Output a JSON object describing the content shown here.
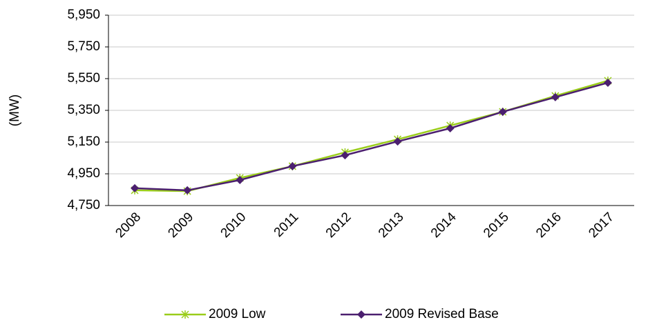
{
  "chart_data": {
    "type": "line",
    "y_label": "(MW)",
    "categories": [
      "2008",
      "2009",
      "2010",
      "2011",
      "2012",
      "2013",
      "2014",
      "2015",
      "2016",
      "2017"
    ],
    "series": [
      {
        "name": "2009 Low",
        "color": "#9acd1a",
        "marker": "star",
        "values": [
          4846,
          4841,
          4924,
          4998,
          5085,
          5167,
          5254,
          5341,
          5441,
          5537
        ]
      },
      {
        "name": "2009 Revised Base",
        "color": "#4b1f6f",
        "marker": "diamond",
        "values": [
          4859,
          4846,
          4911,
          4998,
          5067,
          5154,
          5237,
          5341,
          5433,
          5524
        ]
      }
    ],
    "ylim": [
      4750,
      5950
    ],
    "yticks": [
      {
        "value": 4750,
        "label": "4,750"
      },
      {
        "value": 4950,
        "label": "4,950"
      },
      {
        "value": 5150,
        "label": "5,150"
      },
      {
        "value": 5350,
        "label": "5,350"
      },
      {
        "value": 5550,
        "label": "5,550"
      },
      {
        "value": 5750,
        "label": "5,750"
      },
      {
        "value": 5950,
        "label": "5,950"
      }
    ],
    "grid": true,
    "legend": "bottom"
  }
}
